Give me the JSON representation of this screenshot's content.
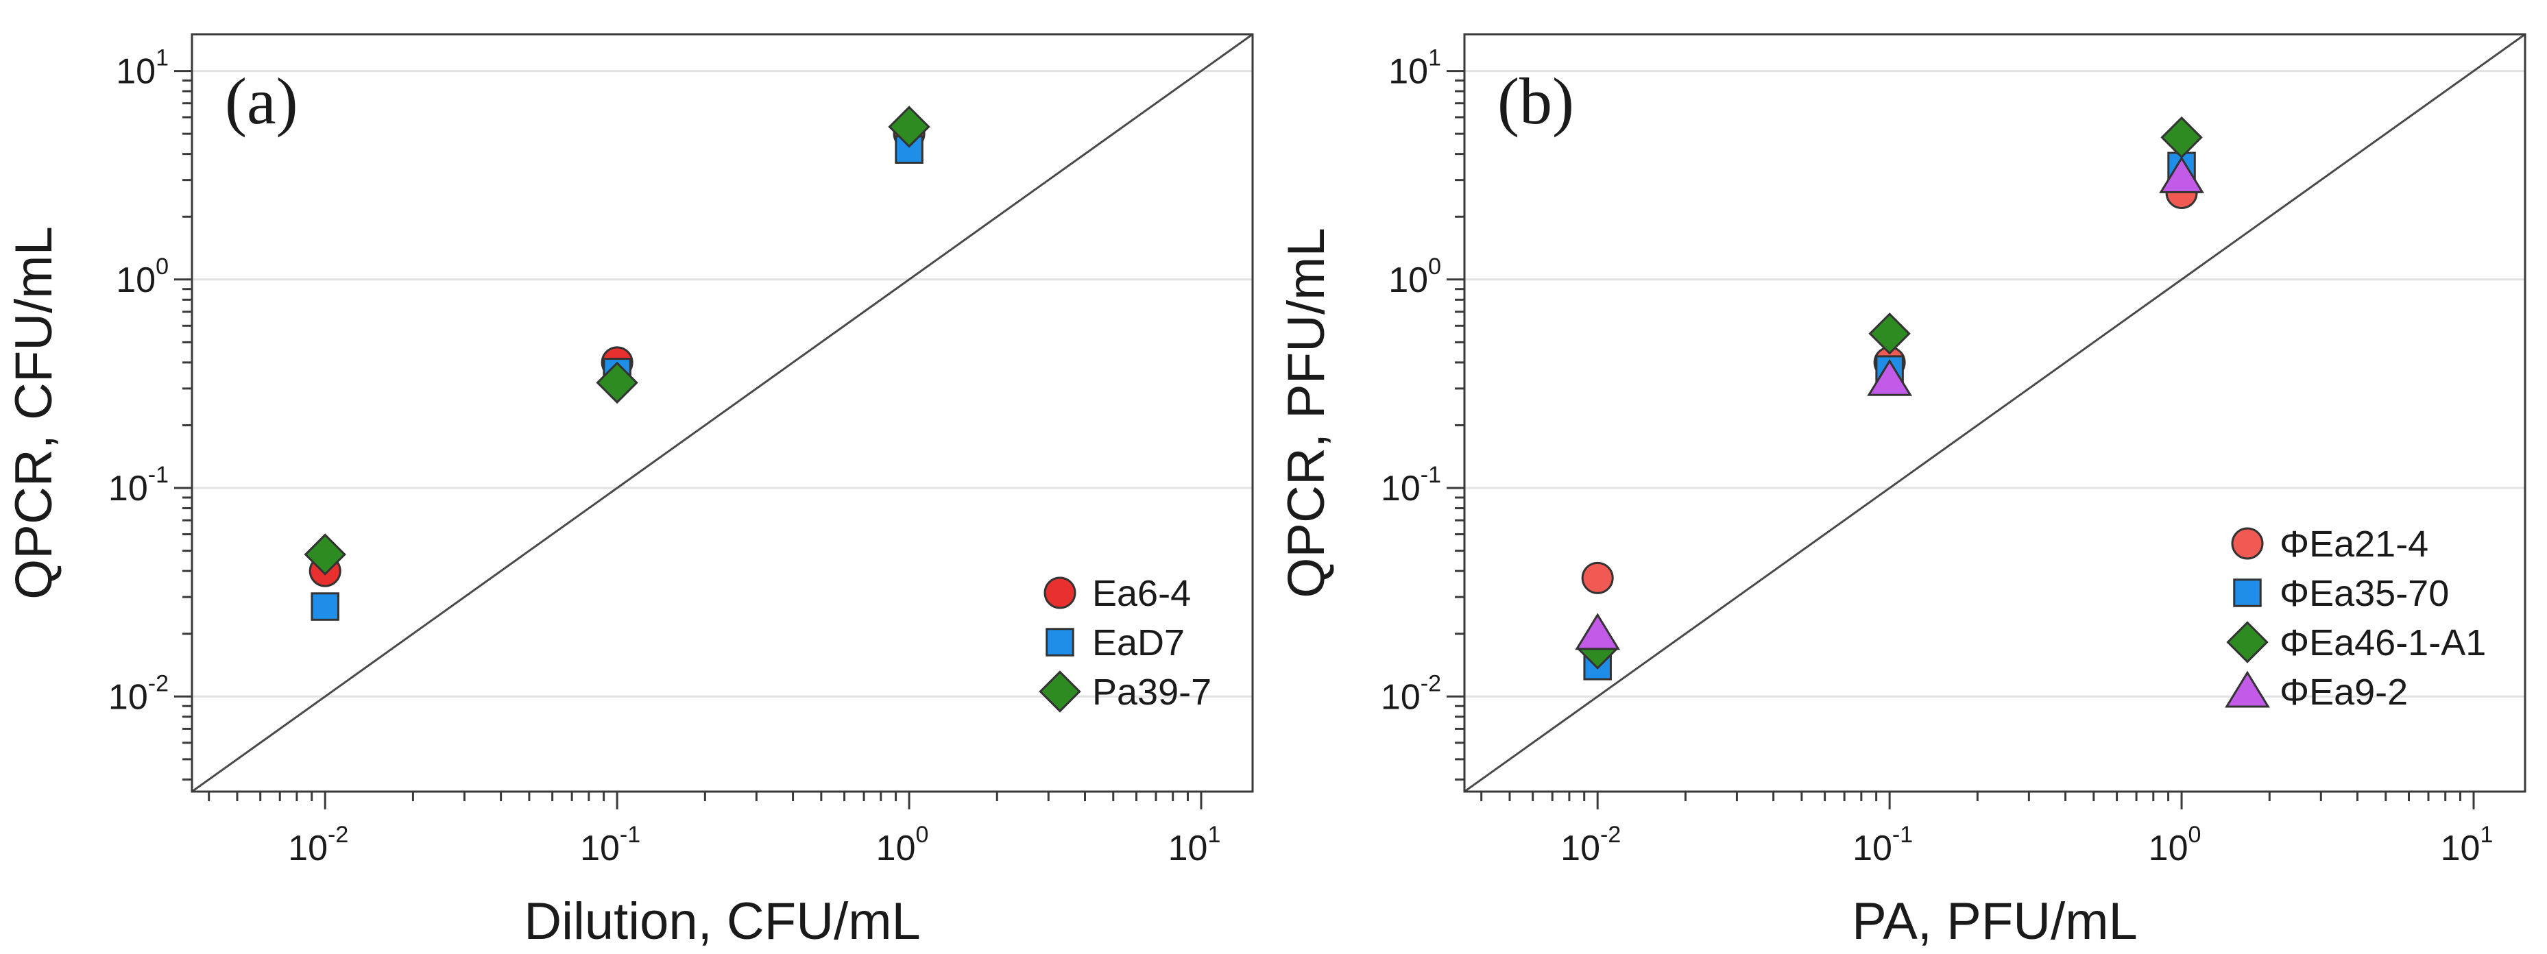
{
  "chart_data": [
    {
      "type": "scatter",
      "panel_label": "(a)",
      "xlabel": "Dilution, CFU/mL",
      "ylabel": "QPCR, CFU/mL",
      "xscale": "log",
      "yscale": "log",
      "xlim": [
        0.0035,
        15
      ],
      "ylim": [
        0.0035,
        15
      ],
      "x_ticks": [
        {
          "value": 0.01,
          "base": "10",
          "exp": "-2"
        },
        {
          "value": 0.1,
          "base": "10",
          "exp": "-1"
        },
        {
          "value": 1,
          "base": "10",
          "exp": "0"
        },
        {
          "value": 10,
          "base": "10",
          "exp": "1"
        }
      ],
      "y_ticks": [
        {
          "value": 0.01,
          "base": "10",
          "exp": "-2"
        },
        {
          "value": 0.1,
          "base": "10",
          "exp": "-1"
        },
        {
          "value": 1,
          "base": "10",
          "exp": "0"
        },
        {
          "value": 10,
          "base": "10",
          "exp": "1"
        }
      ],
      "grid": "horizontal",
      "reference_line": "y = x",
      "legend_position": "bottom-right",
      "series": [
        {
          "name": "Ea6-4",
          "marker": "circle",
          "color": "#e8312f",
          "x": [
            0.01,
            0.1,
            1
          ],
          "y": [
            0.04,
            0.4,
            5.0
          ]
        },
        {
          "name": "EaD7",
          "marker": "square",
          "color": "#1e8ee8",
          "x": [
            0.01,
            0.1,
            1
          ],
          "y": [
            0.027,
            0.36,
            4.2
          ]
        },
        {
          "name": "Pa39-7",
          "marker": "diamond",
          "color": "#2e8b22",
          "x": [
            0.01,
            0.1,
            1
          ],
          "y": [
            0.048,
            0.32,
            5.4
          ]
        }
      ]
    },
    {
      "type": "scatter",
      "panel_label": "(b)",
      "xlabel": "PA, PFU/mL",
      "ylabel": "QPCR, PFU/mL",
      "xscale": "log",
      "yscale": "log",
      "xlim": [
        0.0035,
        15
      ],
      "ylim": [
        0.0035,
        15
      ],
      "x_ticks": [
        {
          "value": 0.01,
          "base": "10",
          "exp": "-2"
        },
        {
          "value": 0.1,
          "base": "10",
          "exp": "-1"
        },
        {
          "value": 1,
          "base": "10",
          "exp": "0"
        },
        {
          "value": 10,
          "base": "10",
          "exp": "1"
        }
      ],
      "y_ticks": [
        {
          "value": 0.01,
          "base": "10",
          "exp": "-2"
        },
        {
          "value": 0.1,
          "base": "10",
          "exp": "-1"
        },
        {
          "value": 1,
          "base": "10",
          "exp": "0"
        },
        {
          "value": 10,
          "base": "10",
          "exp": "1"
        }
      ],
      "grid": "horizontal",
      "reference_line": "y = x",
      "legend_position": "bottom-right",
      "series": [
        {
          "name": "ΦEa21-4",
          "marker": "circle",
          "color": "#f05a52",
          "x": [
            0.01,
            0.1,
            1
          ],
          "y": [
            0.037,
            0.4,
            2.6
          ]
        },
        {
          "name": "ΦEa35-70",
          "marker": "square",
          "color": "#1e8ee8",
          "x": [
            0.01,
            0.1,
            1
          ],
          "y": [
            0.014,
            0.37,
            3.5
          ]
        },
        {
          "name": "ΦEa46-1-A1",
          "marker": "diamond",
          "color": "#2e8b22",
          "x": [
            0.01,
            0.1,
            1
          ],
          "y": [
            0.017,
            0.55,
            4.8
          ]
        },
        {
          "name": "ΦEa9-2",
          "marker": "triangle",
          "color": "#c25be8",
          "x": [
            0.01,
            0.1,
            1
          ],
          "y": [
            0.02,
            0.33,
            3.1
          ]
        }
      ]
    }
  ]
}
